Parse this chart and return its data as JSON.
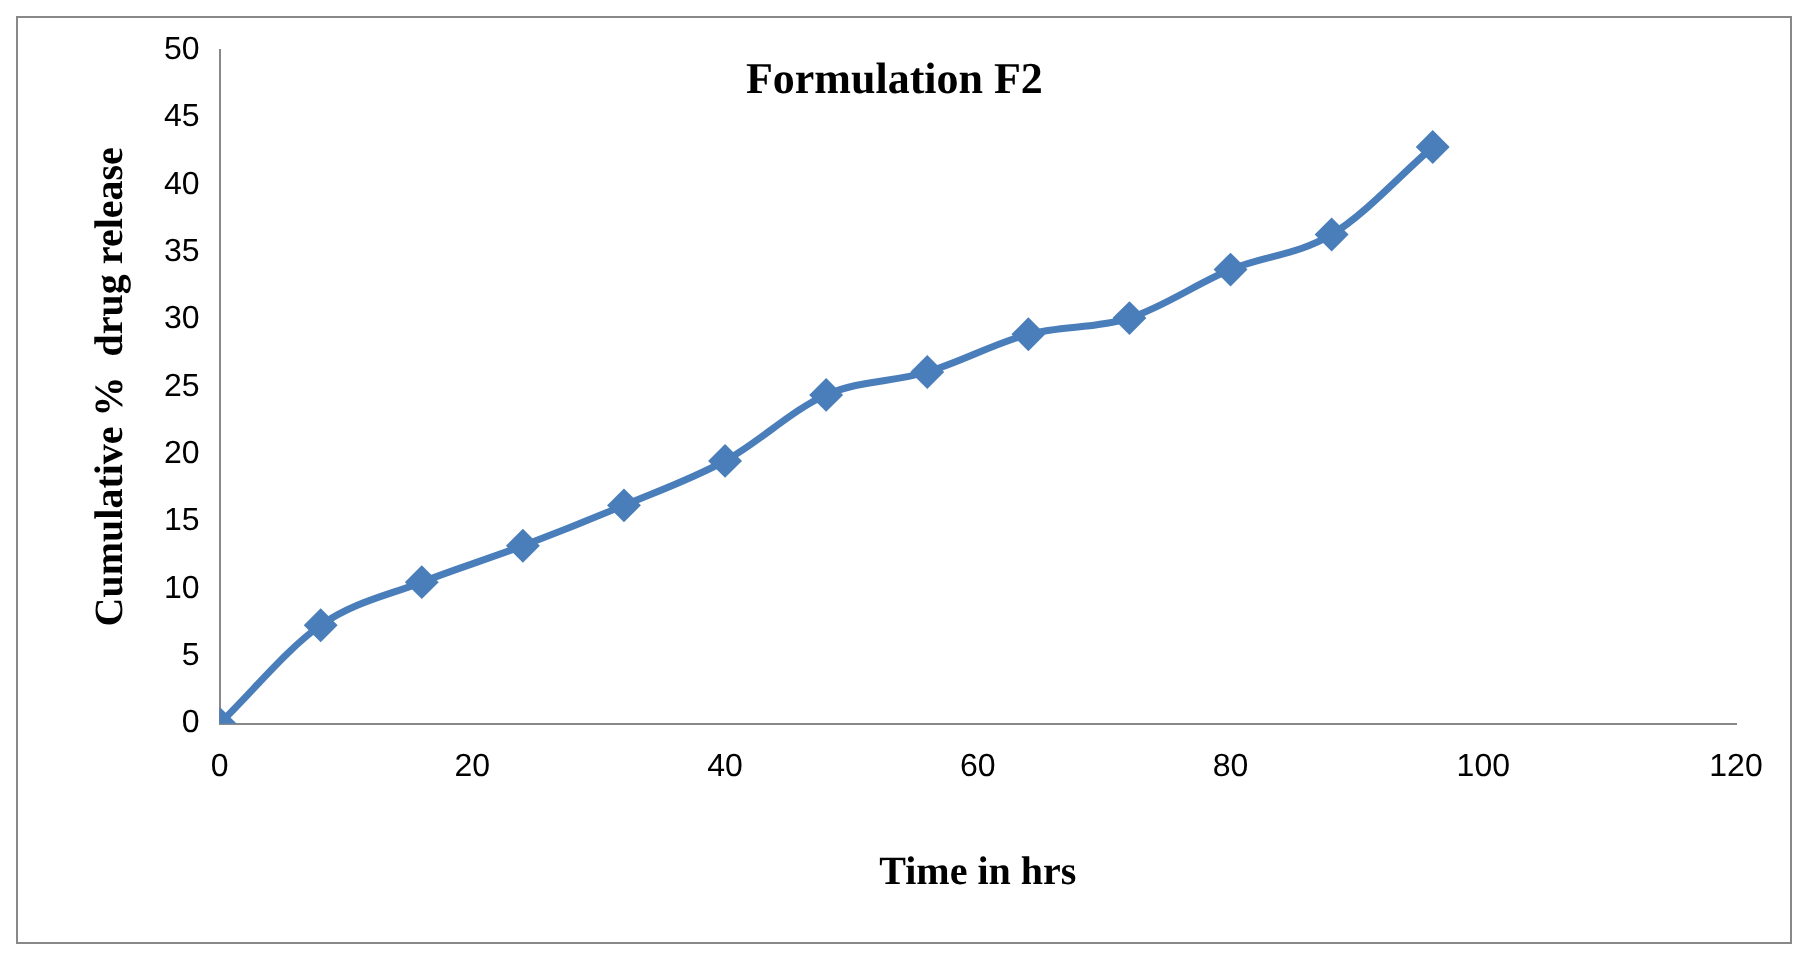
{
  "chart_data": {
    "type": "line",
    "title": "Formulation F2",
    "xlabel": "Time in hrs",
    "ylabel": "Cumulative %  drug release",
    "x": [
      0,
      8,
      16,
      24,
      32,
      40,
      48,
      56,
      64,
      72,
      80,
      88,
      96
    ],
    "series": [
      {
        "color": "#4a7ebb",
        "values": [
          0,
          7.3,
          10.5,
          13.2,
          16.2,
          19.5,
          24.4,
          26.1,
          28.9,
          30.1,
          33.7,
          36.3,
          42.8
        ]
      }
    ],
    "xlim": [
      0,
      120
    ],
    "xticks": [
      0,
      20,
      40,
      60,
      80,
      100,
      120
    ],
    "ylim": [
      0,
      50
    ],
    "yticks": [
      0,
      5,
      10,
      15,
      20,
      25,
      30,
      35,
      40,
      45,
      50
    ],
    "grid": false,
    "legend": false,
    "marker": "diamond",
    "line_style": "solid"
  }
}
